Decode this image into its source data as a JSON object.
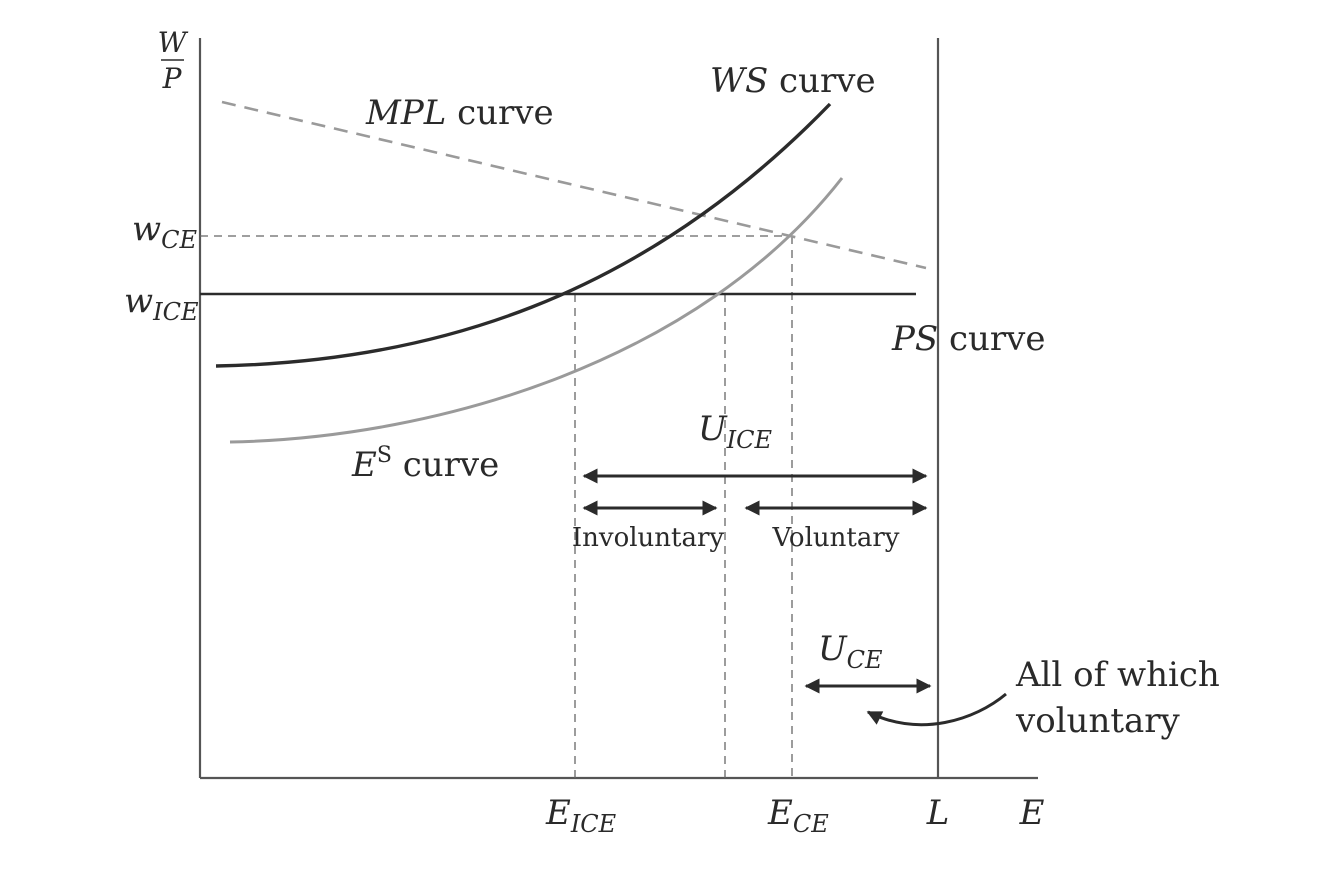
{
  "axes": {
    "y_label_num": "W",
    "y_label_den": "P",
    "x_label": "E"
  },
  "curves": {
    "mpl": {
      "main": "MPL",
      "rest": " curve"
    },
    "ws": {
      "main": "WS",
      "rest": " curve"
    },
    "ps": {
      "main": "PS",
      "rest": " curve"
    },
    "es": {
      "main": "E",
      "sup": "S",
      "rest": " curve"
    }
  },
  "y_ticks": {
    "w_ce": {
      "main": "w",
      "sub": "CE"
    },
    "w_ice": {
      "main": "w",
      "sub": "ICE"
    }
  },
  "x_ticks": {
    "e_ice": {
      "main": "E",
      "sub": "ICE"
    },
    "e_ce": {
      "main": "E",
      "sub": "CE"
    },
    "l": "L"
  },
  "annotations": {
    "u_ice": {
      "main": "U",
      "sub": "ICE"
    },
    "u_ce": {
      "main": "U",
      "sub": "CE"
    },
    "involuntary": "Involuntary",
    "voluntary": "Voluntary",
    "note_line1": "All of which",
    "note_line2": "voluntary"
  }
}
